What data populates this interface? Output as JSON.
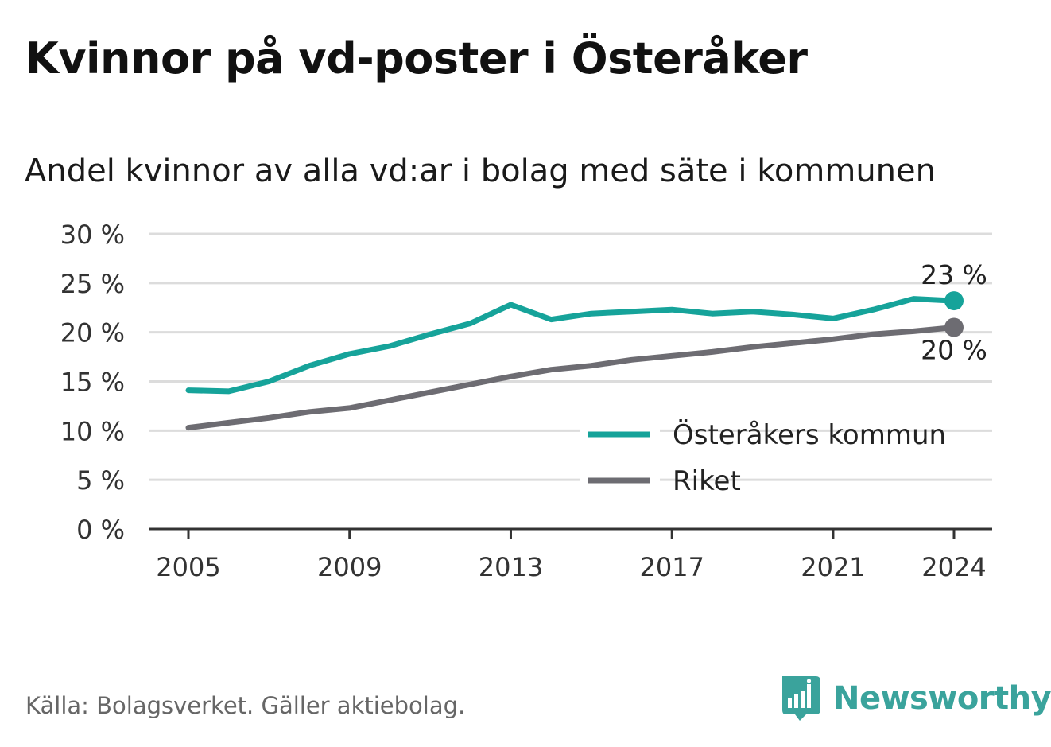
{
  "title": "Kvinnor på vd-poster i Österåker",
  "subtitle": "Andel kvinnor av alla vd:ar i bolag med säte i kommunen",
  "source": "Källa: Bolagsverket. Gäller aktiebolag.",
  "brand": {
    "name": "Newsworthy",
    "logo_icon": "bar-chart-speech-bubble-icon",
    "color": "#3aa39c"
  },
  "chart_data": {
    "type": "line",
    "x": [
      2005,
      2006,
      2007,
      2008,
      2009,
      2010,
      2011,
      2012,
      2013,
      2014,
      2015,
      2016,
      2017,
      2018,
      2019,
      2020,
      2021,
      2022,
      2023,
      2024
    ],
    "x_ticks": [
      "2005",
      "2009",
      "2013",
      "2017",
      "2021",
      "2024"
    ],
    "x_tick_values": [
      2005,
      2009,
      2013,
      2017,
      2021,
      2024
    ],
    "y_ticks": [
      "0 %",
      "5 %",
      "10 %",
      "15 %",
      "20 %",
      "25 %",
      "30 %"
    ],
    "y_tick_values": [
      0,
      5,
      10,
      15,
      20,
      25,
      30
    ],
    "ylim": [
      0,
      30
    ],
    "grid": true,
    "legend_position": "bottom-right",
    "series": [
      {
        "name": "Österåkers kommun",
        "color": "#16a39a",
        "values": [
          14.1,
          14.0,
          15.0,
          16.6,
          17.8,
          18.6,
          19.8,
          20.9,
          22.8,
          21.3,
          21.9,
          22.1,
          22.3,
          21.9,
          22.1,
          21.8,
          21.4,
          22.3,
          23.4,
          23.2
        ],
        "end_label": "23 %"
      },
      {
        "name": "Riket",
        "color": "#6d6c72",
        "values": [
          10.3,
          10.8,
          11.3,
          11.9,
          12.3,
          13.1,
          13.9,
          14.7,
          15.5,
          16.2,
          16.6,
          17.2,
          17.6,
          18.0,
          18.5,
          18.9,
          19.3,
          19.8,
          20.1,
          20.5
        ],
        "end_label": "20 %"
      }
    ]
  }
}
